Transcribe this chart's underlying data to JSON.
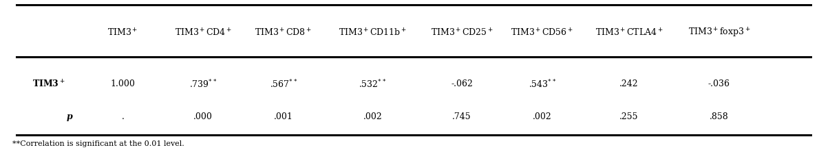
{
  "col_headers": [
    "TIM3$^+$",
    "TIM3$^+$CD4$^+$",
    "TIM3$^+$CD8$^+$",
    "TIM3$^+$CD11b$^+$",
    "TIM3$^+$CD25$^+$",
    "TIM3$^+$CD56$^+$",
    "TIM3$^+$CTLA4$^+$",
    "TIM3$^+$foxp3$^+$"
  ],
  "row_label": "TIM3$^+$",
  "row_sublabel": "p",
  "corr_values": [
    "1.000",
    ".739$^{**}$",
    ".567$^{**}$",
    ".532$^{**}$",
    "-.062",
    ".543$^{**}$",
    ".242",
    "-.036"
  ],
  "p_values": [
    ".",
    ".000",
    ".001",
    ".002",
    ".745",
    ".002",
    ".255",
    ".858"
  ],
  "footnote": "**Correlation is significant at the 0.01 level.",
  "bg_color": "#ffffff",
  "text_color": "#000000"
}
